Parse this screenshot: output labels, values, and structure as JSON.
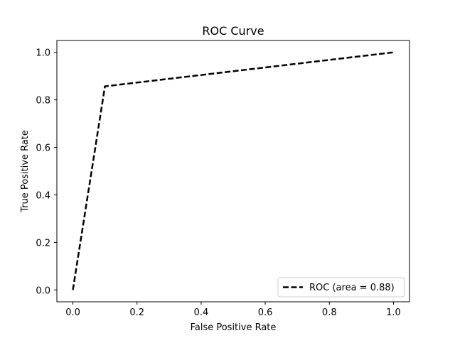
{
  "chart_data": {
    "type": "line",
    "title": "ROC Curve",
    "xlabel": "False Positive Rate",
    "ylabel": "True Positive Rate",
    "xlim": [
      -0.05,
      1.05
    ],
    "ylim": [
      -0.05,
      1.05
    ],
    "xticks": [
      0.0,
      0.2,
      0.4,
      0.6,
      0.8,
      1.0
    ],
    "yticks": [
      0.0,
      0.2,
      0.4,
      0.6,
      0.8,
      1.0
    ],
    "xtick_labels": [
      "0.0",
      "0.2",
      "0.4",
      "0.6",
      "0.8",
      "1.0"
    ],
    "ytick_labels": [
      "0.0",
      "0.2",
      "0.4",
      "0.6",
      "0.8",
      "1.0"
    ],
    "grid": false,
    "legend_position": "lower-right",
    "series": [
      {
        "name": "ROC (area = 0.88)",
        "color": "#000000",
        "line_style": "dashed",
        "x": [
          0.0,
          0.1,
          1.0
        ],
        "y": [
          0.0,
          0.857,
          1.0
        ]
      }
    ]
  }
}
